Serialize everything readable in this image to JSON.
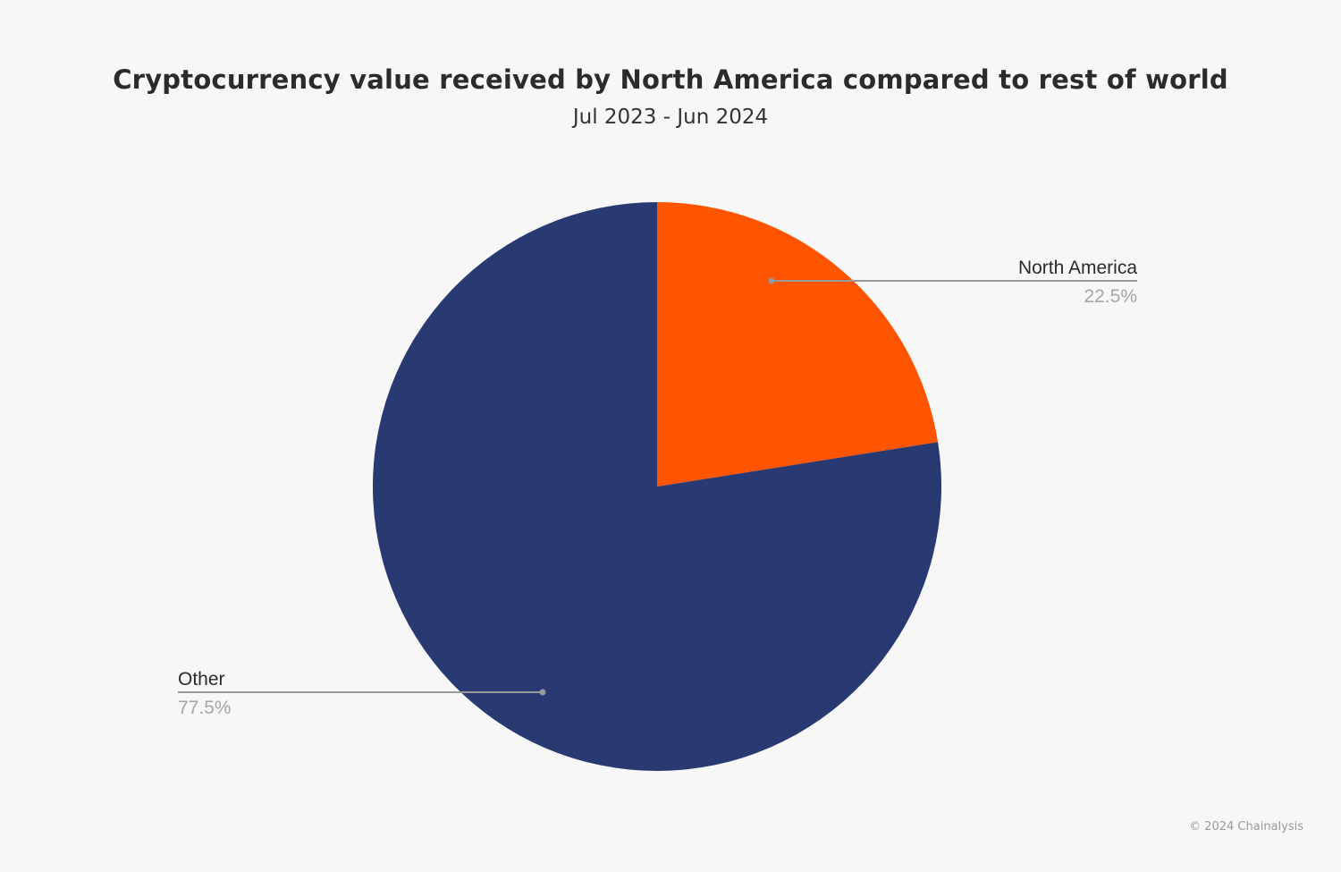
{
  "chart_data": {
    "type": "pie",
    "title": "Cryptocurrency value received by North America compared to rest of world",
    "subtitle": "Jul 2023 - Jun 2024",
    "slices": [
      {
        "label": "North America",
        "value": 22.5,
        "display": "22.5%",
        "color": "#ff5500"
      },
      {
        "label": "Other",
        "value": 77.5,
        "display": "77.5%",
        "color": "#293a72"
      }
    ],
    "start_angle": "12 o'clock",
    "direction": "clockwise",
    "legend": "none"
  },
  "footer": {
    "credit": "© 2024 Chainalysis"
  }
}
